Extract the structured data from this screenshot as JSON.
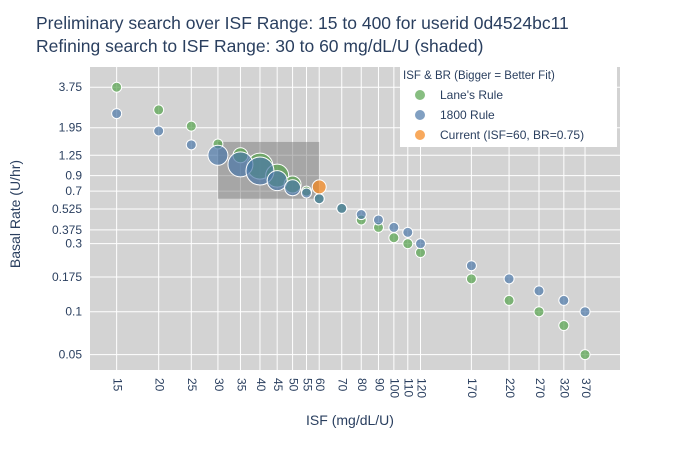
{
  "chart_data": {
    "type": "scatter",
    "title_lines": [
      "Preliminary search over ISF Range: 15 to 400 for userid 0d4524bc11",
      "Refining search to ISF Range: 30 to 60 mg/dL/U (shaded)"
    ],
    "xlabel": "ISF (mg/dL/U)",
    "ylabel": "Basal Rate (U/hr)",
    "x_scale": "log",
    "y_scale": "log",
    "xlim": [
      12.5,
      470
    ],
    "ylim": [
      0.039,
      5.2
    ],
    "x_ticks": [
      15,
      20,
      25,
      30,
      35,
      40,
      45,
      50,
      55,
      60,
      70,
      80,
      90,
      100,
      110,
      120,
      170,
      220,
      270,
      320,
      370
    ],
    "x_tick_labels": [
      "15",
      "20",
      "25",
      "30",
      "35",
      "40",
      "45",
      "50",
      "55",
      "60",
      "70",
      "80",
      "90",
      "100",
      "110",
      "120",
      "170",
      "220",
      "270",
      "320",
      "370"
    ],
    "y_ticks": [
      0.05,
      0.1,
      0.175,
      0.3,
      0.375,
      0.525,
      0.7,
      0.9,
      1.25,
      1.95,
      3.75
    ],
    "y_tick_labels": [
      "0.05",
      "0.1",
      "0.175",
      "0.3",
      "0.375",
      "0.525",
      "0.7",
      "0.9",
      "1.25",
      "1.95",
      "3.75"
    ],
    "grid": true,
    "legend_title": "ISF & BR (Bigger = Better Fit)",
    "legend_position": "top-right",
    "shaded_region": {
      "x": [
        30,
        60
      ],
      "y": [
        0.62,
        1.55
      ]
    },
    "series": [
      {
        "name": "Lane's Rule",
        "color": "#54a24b",
        "points": [
          {
            "x": 15,
            "y": 3.75,
            "fit": 0.1
          },
          {
            "x": 20,
            "y": 2.6,
            "fit": 0.1
          },
          {
            "x": 25,
            "y": 2.0,
            "fit": 0.1
          },
          {
            "x": 30,
            "y": 1.5,
            "fit": 0.1
          },
          {
            "x": 35,
            "y": 1.25,
            "fit": 0.35
          },
          {
            "x": 40,
            "y": 1.05,
            "fit": 0.9
          },
          {
            "x": 45,
            "y": 0.9,
            "fit": 0.75
          },
          {
            "x": 50,
            "y": 0.78,
            "fit": 0.45
          },
          {
            "x": 55,
            "y": 0.7,
            "fit": 0.1
          },
          {
            "x": 60,
            "y": 0.62,
            "fit": 0.1
          },
          {
            "x": 70,
            "y": 0.53,
            "fit": 0.1
          },
          {
            "x": 80,
            "y": 0.44,
            "fit": 0.1
          },
          {
            "x": 90,
            "y": 0.39,
            "fit": 0.1
          },
          {
            "x": 100,
            "y": 0.33,
            "fit": 0.1
          },
          {
            "x": 110,
            "y": 0.3,
            "fit": 0.1
          },
          {
            "x": 120,
            "y": 0.26,
            "fit": 0.1
          },
          {
            "x": 170,
            "y": 0.17,
            "fit": 0.1
          },
          {
            "x": 220,
            "y": 0.12,
            "fit": 0.1
          },
          {
            "x": 270,
            "y": 0.1,
            "fit": 0.1
          },
          {
            "x": 320,
            "y": 0.08,
            "fit": 0.1
          },
          {
            "x": 370,
            "y": 0.05,
            "fit": 0.1
          }
        ]
      },
      {
        "name": "1800 Rule",
        "color": "#4c78a8",
        "points": [
          {
            "x": 15,
            "y": 2.45,
            "fit": 0.1
          },
          {
            "x": 20,
            "y": 1.85,
            "fit": 0.1
          },
          {
            "x": 25,
            "y": 1.48,
            "fit": 0.1
          },
          {
            "x": 30,
            "y": 1.25,
            "fit": 0.6
          },
          {
            "x": 35,
            "y": 1.08,
            "fit": 0.85
          },
          {
            "x": 40,
            "y": 0.97,
            "fit": 1.0
          },
          {
            "x": 45,
            "y": 0.83,
            "fit": 0.6
          },
          {
            "x": 50,
            "y": 0.74,
            "fit": 0.4
          },
          {
            "x": 55,
            "y": 0.68,
            "fit": 0.1
          },
          {
            "x": 60,
            "y": 0.62,
            "fit": 0.1
          },
          {
            "x": 70,
            "y": 0.53,
            "fit": 0.1
          },
          {
            "x": 80,
            "y": 0.48,
            "fit": 0.1
          },
          {
            "x": 90,
            "y": 0.44,
            "fit": 0.1
          },
          {
            "x": 100,
            "y": 0.39,
            "fit": 0.1
          },
          {
            "x": 110,
            "y": 0.36,
            "fit": 0.1
          },
          {
            "x": 120,
            "y": 0.3,
            "fit": 0.1
          },
          {
            "x": 170,
            "y": 0.21,
            "fit": 0.1
          },
          {
            "x": 220,
            "y": 0.17,
            "fit": 0.1
          },
          {
            "x": 270,
            "y": 0.14,
            "fit": 0.1
          },
          {
            "x": 320,
            "y": 0.12,
            "fit": 0.1
          },
          {
            "x": 370,
            "y": 0.1,
            "fit": 0.1
          }
        ]
      },
      {
        "name": "Current (ISF=60, BR=0.75)",
        "color": "#f58518",
        "points": [
          {
            "x": 60,
            "y": 0.75,
            "fit": 0.3
          }
        ]
      }
    ]
  }
}
